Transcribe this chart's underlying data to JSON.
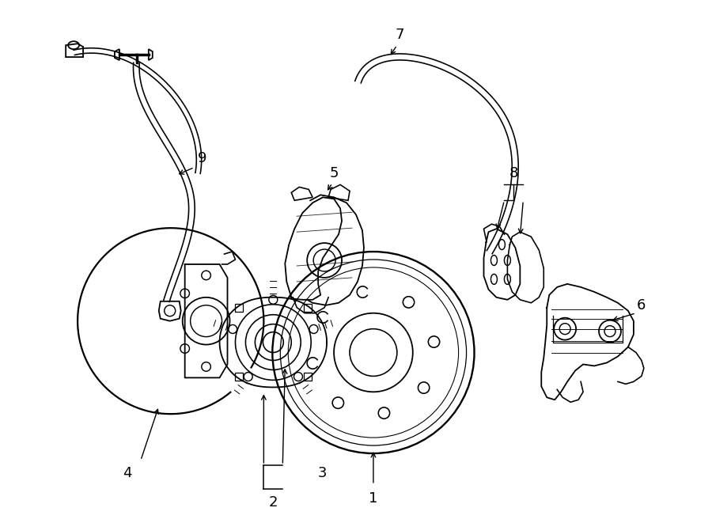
{
  "background_color": "#ffffff",
  "line_color": "#000000",
  "fig_width": 9.0,
  "fig_height": 6.61,
  "dpi": 100
}
